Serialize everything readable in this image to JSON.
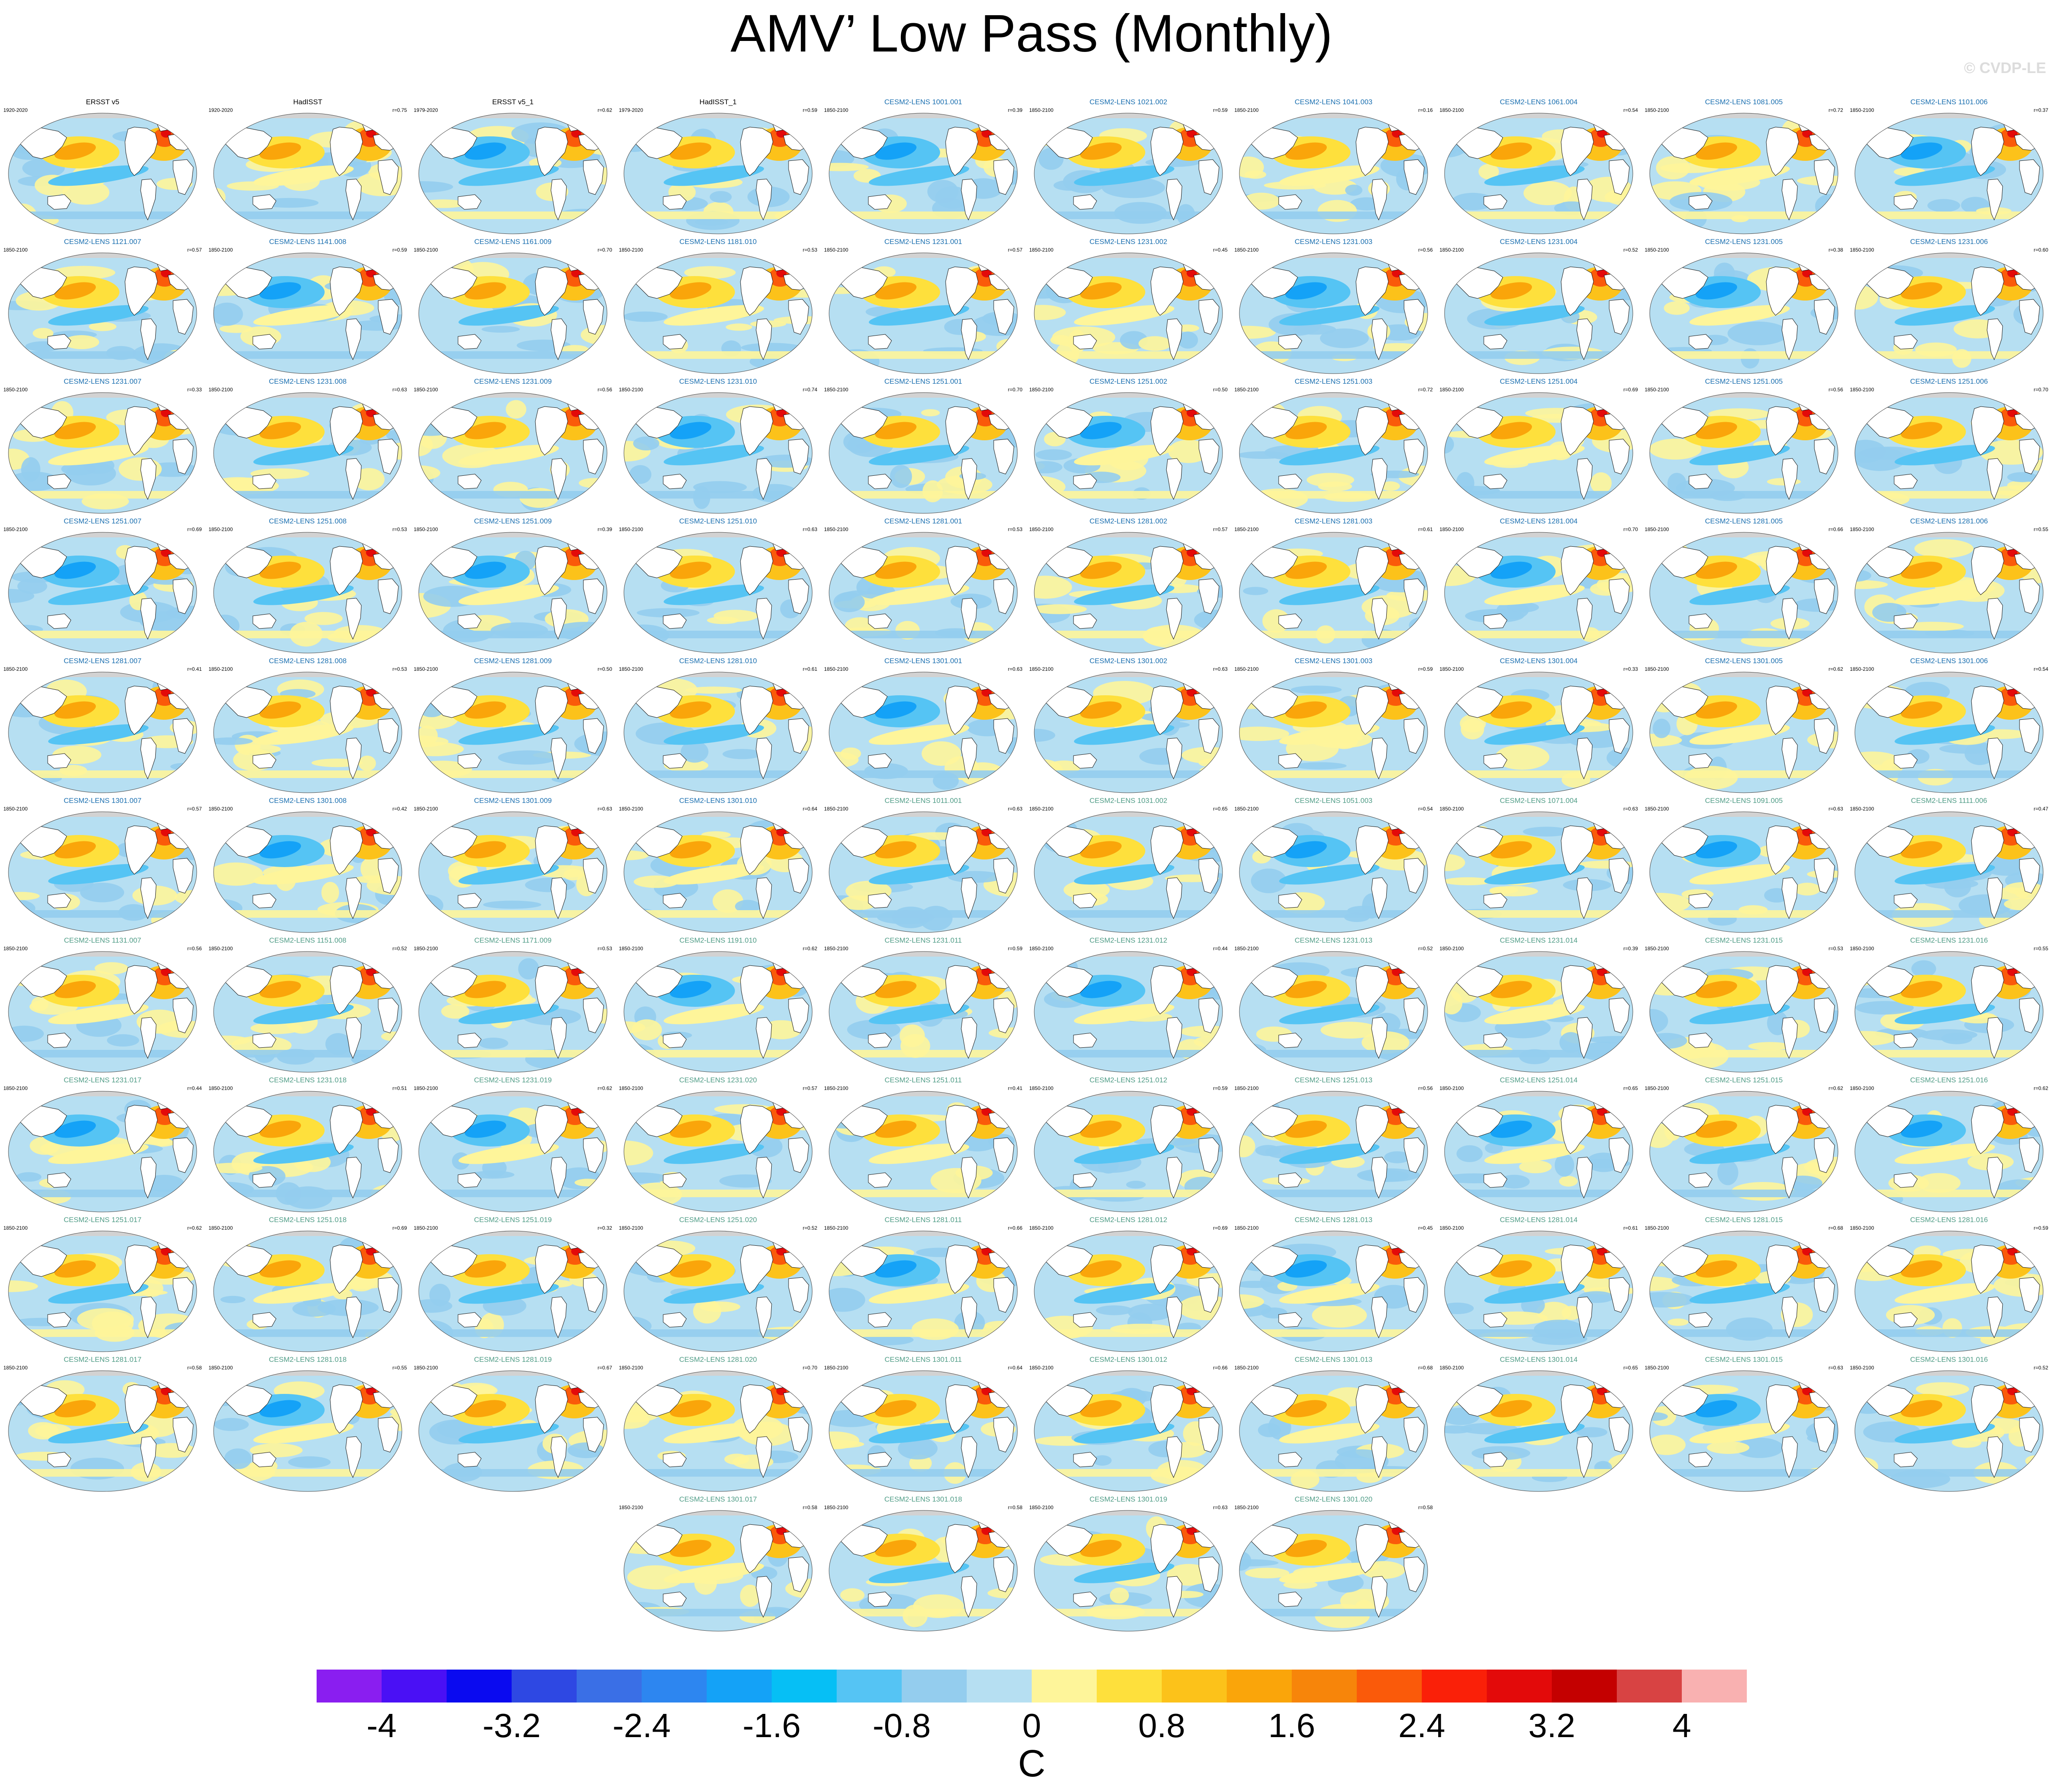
{
  "title": "AMV’ Low Pass (Monthly)",
  "watermark": "© CVDP-LE",
  "colors": {
    "observation_title": "#000000",
    "member_set1_title": "#1a6fb0",
    "member_set2_title": "#4f9c86",
    "coastline": "#111111",
    "land": "#ffffff",
    "ice": "#d2d2d2"
  },
  "panels": [
    {
      "name": "ERSST v5",
      "period": "1920-2020",
      "r": "",
      "group": "obs"
    },
    {
      "name": "HadISST",
      "period": "1920-2020",
      "r": "r=0.75",
      "group": "obs"
    },
    {
      "name": "ERSST v5_1",
      "period": "1979-2020",
      "r": "r=0.62",
      "group": "obs"
    },
    {
      "name": "HadISST_1",
      "period": "1979-2020",
      "r": "r=0.59",
      "group": "obs"
    },
    {
      "name": "CESM2-LENS 1001.001",
      "period": "1850-2100",
      "r": "r=0.39",
      "group": "a"
    },
    {
      "name": "CESM2-LENS 1021.002",
      "period": "1850-2100",
      "r": "r=0.59",
      "group": "a"
    },
    {
      "name": "CESM2-LENS 1041.003",
      "period": "1850-2100",
      "r": "r=0.16",
      "group": "a"
    },
    {
      "name": "CESM2-LENS 1061.004",
      "period": "1850-2100",
      "r": "r=0.54",
      "group": "a"
    },
    {
      "name": "CESM2-LENS 1081.005",
      "period": "1850-2100",
      "r": "r=0.72",
      "group": "a"
    },
    {
      "name": "CESM2-LENS 1101.006",
      "period": "1850-2100",
      "r": "r=0.37",
      "group": "a"
    },
    {
      "name": "CESM2-LENS 1121.007",
      "period": "1850-2100",
      "r": "r=0.57",
      "group": "a"
    },
    {
      "name": "CESM2-LENS 1141.008",
      "period": "1850-2100",
      "r": "r=0.59",
      "group": "a"
    },
    {
      "name": "CESM2-LENS 1161.009",
      "period": "1850-2100",
      "r": "r=0.70",
      "group": "a"
    },
    {
      "name": "CESM2-LENS 1181.010",
      "period": "1850-2100",
      "r": "r=0.53",
      "group": "a"
    },
    {
      "name": "CESM2-LENS 1231.001",
      "period": "1850-2100",
      "r": "r=0.57",
      "group": "a"
    },
    {
      "name": "CESM2-LENS 1231.002",
      "period": "1850-2100",
      "r": "r=0.45",
      "group": "a"
    },
    {
      "name": "CESM2-LENS 1231.003",
      "period": "1850-2100",
      "r": "r=0.56",
      "group": "a"
    },
    {
      "name": "CESM2-LENS 1231.004",
      "period": "1850-2100",
      "r": "r=0.52",
      "group": "a"
    },
    {
      "name": "CESM2-LENS 1231.005",
      "period": "1850-2100",
      "r": "r=0.38",
      "group": "a"
    },
    {
      "name": "CESM2-LENS 1231.006",
      "period": "1850-2100",
      "r": "r=0.60",
      "group": "a"
    },
    {
      "name": "CESM2-LENS 1231.007",
      "period": "1850-2100",
      "r": "r=0.33",
      "group": "a"
    },
    {
      "name": "CESM2-LENS 1231.008",
      "period": "1850-2100",
      "r": "r=0.63",
      "group": "a"
    },
    {
      "name": "CESM2-LENS 1231.009",
      "period": "1850-2100",
      "r": "r=0.56",
      "group": "a"
    },
    {
      "name": "CESM2-LENS 1231.010",
      "period": "1850-2100",
      "r": "r=0.74",
      "group": "a"
    },
    {
      "name": "CESM2-LENS 1251.001",
      "period": "1850-2100",
      "r": "r=0.70",
      "group": "a"
    },
    {
      "name": "CESM2-LENS 1251.002",
      "period": "1850-2100",
      "r": "r=0.50",
      "group": "a"
    },
    {
      "name": "CESM2-LENS 1251.003",
      "period": "1850-2100",
      "r": "r=0.72",
      "group": "a"
    },
    {
      "name": "CESM2-LENS 1251.004",
      "period": "1850-2100",
      "r": "r=0.69",
      "group": "a"
    },
    {
      "name": "CESM2-LENS 1251.005",
      "period": "1850-2100",
      "r": "r=0.56",
      "group": "a"
    },
    {
      "name": "CESM2-LENS 1251.006",
      "period": "1850-2100",
      "r": "r=0.70",
      "group": "a"
    },
    {
      "name": "CESM2-LENS 1251.007",
      "period": "1850-2100",
      "r": "r=0.69",
      "group": "a"
    },
    {
      "name": "CESM2-LENS 1251.008",
      "period": "1850-2100",
      "r": "r=0.53",
      "group": "a"
    },
    {
      "name": "CESM2-LENS 1251.009",
      "period": "1850-2100",
      "r": "r=0.39",
      "group": "a"
    },
    {
      "name": "CESM2-LENS 1251.010",
      "period": "1850-2100",
      "r": "r=0.63",
      "group": "a"
    },
    {
      "name": "CESM2-LENS 1281.001",
      "period": "1850-2100",
      "r": "r=0.53",
      "group": "a"
    },
    {
      "name": "CESM2-LENS 1281.002",
      "period": "1850-2100",
      "r": "r=0.57",
      "group": "a"
    },
    {
      "name": "CESM2-LENS 1281.003",
      "period": "1850-2100",
      "r": "r=0.61",
      "group": "a"
    },
    {
      "name": "CESM2-LENS 1281.004",
      "period": "1850-2100",
      "r": "r=0.70",
      "group": "a"
    },
    {
      "name": "CESM2-LENS 1281.005",
      "period": "1850-2100",
      "r": "r=0.66",
      "group": "a"
    },
    {
      "name": "CESM2-LENS 1281.006",
      "period": "1850-2100",
      "r": "r=0.55",
      "group": "a"
    },
    {
      "name": "CESM2-LENS 1281.007",
      "period": "1850-2100",
      "r": "r=0.41",
      "group": "a"
    },
    {
      "name": "CESM2-LENS 1281.008",
      "period": "1850-2100",
      "r": "r=0.53",
      "group": "a"
    },
    {
      "name": "CESM2-LENS 1281.009",
      "period": "1850-2100",
      "r": "r=0.50",
      "group": "a"
    },
    {
      "name": "CESM2-LENS 1281.010",
      "period": "1850-2100",
      "r": "r=0.61",
      "group": "a"
    },
    {
      "name": "CESM2-LENS 1301.001",
      "period": "1850-2100",
      "r": "r=0.63",
      "group": "a"
    },
    {
      "name": "CESM2-LENS 1301.002",
      "period": "1850-2100",
      "r": "r=0.63",
      "group": "a"
    },
    {
      "name": "CESM2-LENS 1301.003",
      "period": "1850-2100",
      "r": "r=0.59",
      "group": "a"
    },
    {
      "name": "CESM2-LENS 1301.004",
      "period": "1850-2100",
      "r": "r=0.33",
      "group": "a"
    },
    {
      "name": "CESM2-LENS 1301.005",
      "period": "1850-2100",
      "r": "r=0.62",
      "group": "a"
    },
    {
      "name": "CESM2-LENS 1301.006",
      "period": "1850-2100",
      "r": "r=0.54",
      "group": "a"
    },
    {
      "name": "CESM2-LENS 1301.007",
      "period": "1850-2100",
      "r": "r=0.57",
      "group": "a"
    },
    {
      "name": "CESM2-LENS 1301.008",
      "period": "1850-2100",
      "r": "r=0.42",
      "group": "a"
    },
    {
      "name": "CESM2-LENS 1301.009",
      "period": "1850-2100",
      "r": "r=0.63",
      "group": "a"
    },
    {
      "name": "CESM2-LENS 1301.010",
      "period": "1850-2100",
      "r": "r=0.64",
      "group": "a"
    },
    {
      "name": "CESM2-LENS 1011.001",
      "period": "1850-2100",
      "r": "r=0.63",
      "group": "b"
    },
    {
      "name": "CESM2-LENS 1031.002",
      "period": "1850-2100",
      "r": "r=0.65",
      "group": "b"
    },
    {
      "name": "CESM2-LENS 1051.003",
      "period": "1850-2100",
      "r": "r=0.54",
      "group": "b"
    },
    {
      "name": "CESM2-LENS 1071.004",
      "period": "1850-2100",
      "r": "r=0.63",
      "group": "b"
    },
    {
      "name": "CESM2-LENS 1091.005",
      "period": "1850-2100",
      "r": "r=0.63",
      "group": "b"
    },
    {
      "name": "CESM2-LENS 1111.006",
      "period": "1850-2100",
      "r": "r=0.47",
      "group": "b"
    },
    {
      "name": "CESM2-LENS 1131.007",
      "period": "1850-2100",
      "r": "r=0.56",
      "group": "b"
    },
    {
      "name": "CESM2-LENS 1151.008",
      "period": "1850-2100",
      "r": "r=0.52",
      "group": "b"
    },
    {
      "name": "CESM2-LENS 1171.009",
      "period": "1850-2100",
      "r": "r=0.53",
      "group": "b"
    },
    {
      "name": "CESM2-LENS 1191.010",
      "period": "1850-2100",
      "r": "r=0.62",
      "group": "b"
    },
    {
      "name": "CESM2-LENS 1231.011",
      "period": "1850-2100",
      "r": "r=0.59",
      "group": "b"
    },
    {
      "name": "CESM2-LENS 1231.012",
      "period": "1850-2100",
      "r": "r=0.44",
      "group": "b"
    },
    {
      "name": "CESM2-LENS 1231.013",
      "period": "1850-2100",
      "r": "r=0.52",
      "group": "b"
    },
    {
      "name": "CESM2-LENS 1231.014",
      "period": "1850-2100",
      "r": "r=0.39",
      "group": "b"
    },
    {
      "name": "CESM2-LENS 1231.015",
      "period": "1850-2100",
      "r": "r=0.53",
      "group": "b"
    },
    {
      "name": "CESM2-LENS 1231.016",
      "period": "1850-2100",
      "r": "r=0.55",
      "group": "b"
    },
    {
      "name": "CESM2-LENS 1231.017",
      "period": "1850-2100",
      "r": "r=0.44",
      "group": "b"
    },
    {
      "name": "CESM2-LENS 1231.018",
      "period": "1850-2100",
      "r": "r=0.51",
      "group": "b"
    },
    {
      "name": "CESM2-LENS 1231.019",
      "period": "1850-2100",
      "r": "r=0.62",
      "group": "b"
    },
    {
      "name": "CESM2-LENS 1231.020",
      "period": "1850-2100",
      "r": "r=0.57",
      "group": "b"
    },
    {
      "name": "CESM2-LENS 1251.011",
      "period": "1850-2100",
      "r": "r=0.41",
      "group": "b"
    },
    {
      "name": "CESM2-LENS 1251.012",
      "period": "1850-2100",
      "r": "r=0.59",
      "group": "b"
    },
    {
      "name": "CESM2-LENS 1251.013",
      "period": "1850-2100",
      "r": "r=0.56",
      "group": "b"
    },
    {
      "name": "CESM2-LENS 1251.014",
      "period": "1850-2100",
      "r": "r=0.65",
      "group": "b"
    },
    {
      "name": "CESM2-LENS 1251.015",
      "period": "1850-2100",
      "r": "r=0.62",
      "group": "b"
    },
    {
      "name": "CESM2-LENS 1251.016",
      "period": "1850-2100",
      "r": "r=0.62",
      "group": "b"
    },
    {
      "name": "CESM2-LENS 1251.017",
      "period": "1850-2100",
      "r": "r=0.62",
      "group": "b"
    },
    {
      "name": "CESM2-LENS 1251.018",
      "period": "1850-2100",
      "r": "r=0.69",
      "group": "b"
    },
    {
      "name": "CESM2-LENS 1251.019",
      "period": "1850-2100",
      "r": "r=0.32",
      "group": "b"
    },
    {
      "name": "CESM2-LENS 1251.020",
      "period": "1850-2100",
      "r": "r=0.52",
      "group": "b"
    },
    {
      "name": "CESM2-LENS 1281.011",
      "period": "1850-2100",
      "r": "r=0.66",
      "group": "b"
    },
    {
      "name": "CESM2-LENS 1281.012",
      "period": "1850-2100",
      "r": "r=0.69",
      "group": "b"
    },
    {
      "name": "CESM2-LENS 1281.013",
      "period": "1850-2100",
      "r": "r=0.45",
      "group": "b"
    },
    {
      "name": "CESM2-LENS 1281.014",
      "period": "1850-2100",
      "r": "r=0.61",
      "group": "b"
    },
    {
      "name": "CESM2-LENS 1281.015",
      "period": "1850-2100",
      "r": "r=0.68",
      "group": "b"
    },
    {
      "name": "CESM2-LENS 1281.016",
      "period": "1850-2100",
      "r": "r=0.59",
      "group": "b"
    },
    {
      "name": "CESM2-LENS 1281.017",
      "period": "1850-2100",
      "r": "r=0.58",
      "group": "b"
    },
    {
      "name": "CESM2-LENS 1281.018",
      "period": "1850-2100",
      "r": "r=0.55",
      "group": "b"
    },
    {
      "name": "CESM2-LENS 1281.019",
      "period": "1850-2100",
      "r": "r=0.67",
      "group": "b"
    },
    {
      "name": "CESM2-LENS 1281.020",
      "period": "1850-2100",
      "r": "r=0.70",
      "group": "b"
    },
    {
      "name": "CESM2-LENS 1301.011",
      "period": "1850-2100",
      "r": "r=0.64",
      "group": "b"
    },
    {
      "name": "CESM2-LENS 1301.012",
      "period": "1850-2100",
      "r": "r=0.66",
      "group": "b"
    },
    {
      "name": "CESM2-LENS 1301.013",
      "period": "1850-2100",
      "r": "r=0.68",
      "group": "b"
    },
    {
      "name": "CESM2-LENS 1301.014",
      "period": "1850-2100",
      "r": "r=0.65",
      "group": "b"
    },
    {
      "name": "CESM2-LENS 1301.015",
      "period": "1850-2100",
      "r": "r=0.63",
      "group": "b"
    },
    {
      "name": "CESM2-LENS 1301.016",
      "period": "1850-2100",
      "r": "r=0.52",
      "group": "b"
    },
    {
      "name": "CESM2-LENS 1301.017",
      "period": "1850-2100",
      "r": "r=0.58",
      "group": "b"
    },
    {
      "name": "CESM2-LENS 1301.018",
      "period": "1850-2100",
      "r": "r=0.58",
      "group": "b"
    },
    {
      "name": "CESM2-LENS 1301.019",
      "period": "1850-2100",
      "r": "r=0.63",
      "group": "b"
    },
    {
      "name": "CESM2-LENS 1301.020",
      "period": "1850-2100",
      "r": "r=0.58",
      "group": "b"
    }
  ],
  "colorbar": {
    "units": "C",
    "colors": [
      "#8a1ef0",
      "#4a10f5",
      "#0a0af0",
      "#2e48e3",
      "#3a6fe6",
      "#2d86f0",
      "#14a2f7",
      "#06bff5",
      "#55c4f4",
      "#94cdee",
      "#b6dff2",
      "#fef59a",
      "#fee03c",
      "#fcc21a",
      "#faa50a",
      "#f7850a",
      "#fa5a0a",
      "#fa2008",
      "#e30a0a",
      "#c40000",
      "#d84343",
      "#f9b1b1"
    ],
    "tick_labels": [
      "-4",
      "-3.2",
      "-2.4",
      "-1.6",
      "-0.8",
      "0",
      "0.8",
      "1.6",
      "2.4",
      "3.2",
      "4"
    ]
  }
}
